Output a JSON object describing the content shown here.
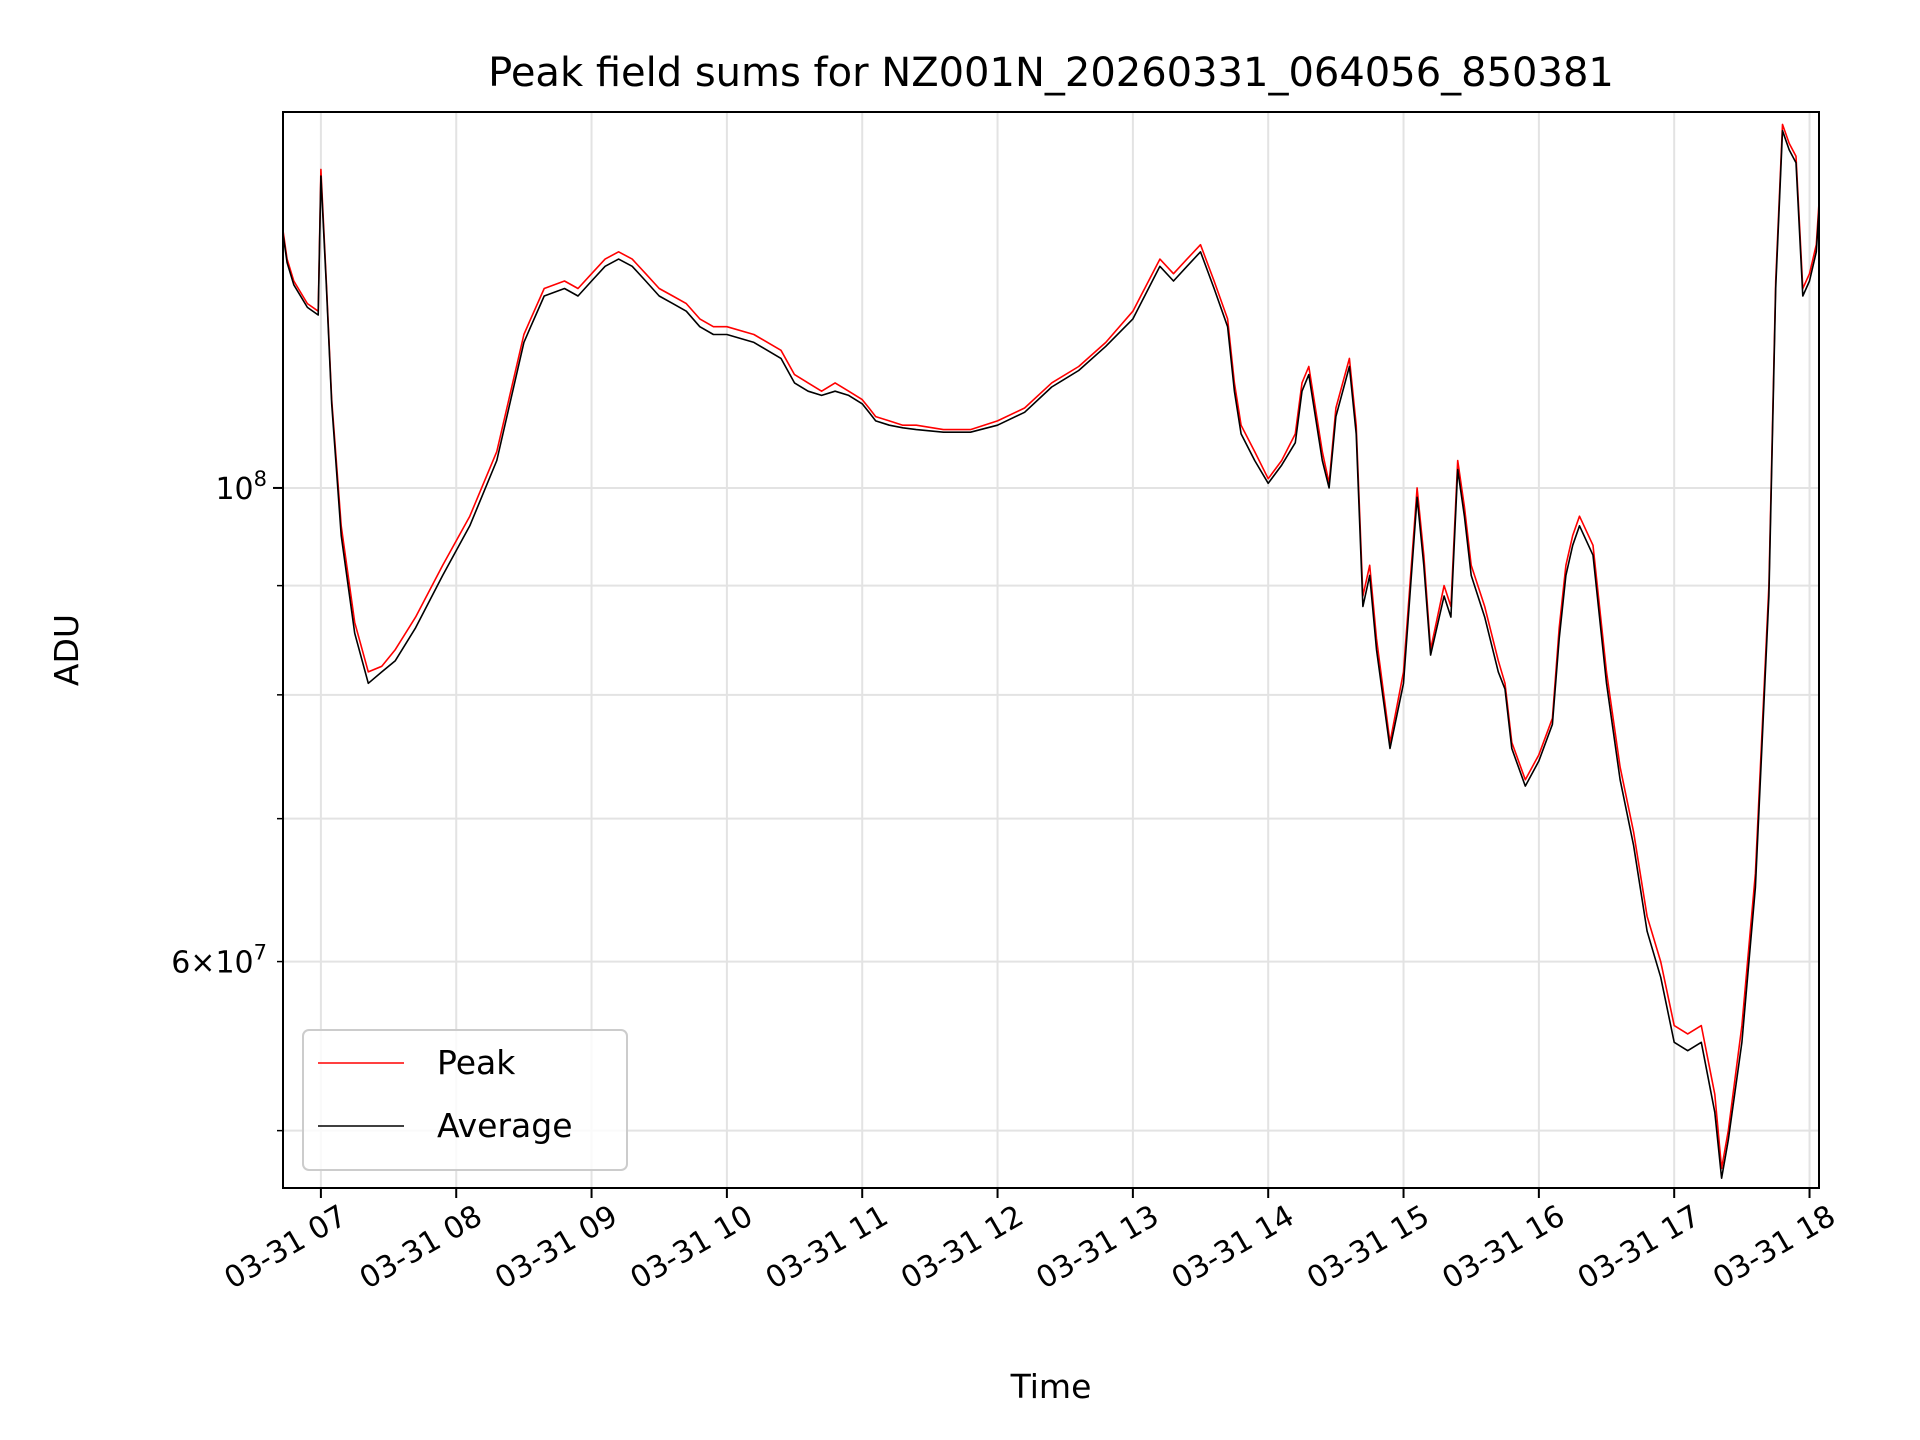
{
  "chart_data": {
    "type": "line",
    "title": "Peak field sums for NZ001N_20260331_064056_850381",
    "xlabel": "Time",
    "ylabel": "ADU",
    "yscale": "log",
    "ylim": [
      47000000,
      150000000
    ],
    "xlim": [
      6.72,
      18.07
    ],
    "grid": true,
    "x_ticks": [
      {
        "value": 7,
        "label": "03-31 07"
      },
      {
        "value": 8,
        "label": "03-31 08"
      },
      {
        "value": 9,
        "label": "03-31 09"
      },
      {
        "value": 10,
        "label": "03-31 10"
      },
      {
        "value": 11,
        "label": "03-31 11"
      },
      {
        "value": 12,
        "label": "03-31 12"
      },
      {
        "value": 13,
        "label": "03-31 13"
      },
      {
        "value": 14,
        "label": "03-31 14"
      },
      {
        "value": 15,
        "label": "03-31 15"
      },
      {
        "value": 16,
        "label": "03-31 16"
      },
      {
        "value": 17,
        "label": "03-31 17"
      },
      {
        "value": 18,
        "label": "03-31 18"
      }
    ],
    "y_ticks_major": [
      {
        "value": 100000000,
        "base": "10",
        "exp": "8"
      }
    ],
    "y_ticks_minor": [
      {
        "value": 50000000,
        "label": ""
      },
      {
        "value": 60000000,
        "mant": "6",
        "base": "10",
        "exp": "7"
      },
      {
        "value": 70000000,
        "label": ""
      },
      {
        "value": 80000000,
        "label": ""
      },
      {
        "value": 90000000,
        "label": ""
      }
    ],
    "legend": {
      "position": "lower-left"
    },
    "series": [
      {
        "name": "Peak",
        "color": "#ff0000",
        "x": [
          6.72,
          6.75,
          6.8,
          6.9,
          6.98,
          7.0,
          7.04,
          7.08,
          7.15,
          7.25,
          7.35,
          7.45,
          7.55,
          7.7,
          7.9,
          8.1,
          8.3,
          8.5,
          8.55,
          8.65,
          8.8,
          8.9,
          9.0,
          9.1,
          9.2,
          9.3,
          9.4,
          9.5,
          9.6,
          9.7,
          9.8,
          9.9,
          10.0,
          10.2,
          10.4,
          10.5,
          10.6,
          10.7,
          10.8,
          10.9,
          11.0,
          11.05,
          11.1,
          11.2,
          11.3,
          11.4,
          11.6,
          11.8,
          12.0,
          12.2,
          12.4,
          12.6,
          12.8,
          13.0,
          13.2,
          13.3,
          13.4,
          13.5,
          13.6,
          13.7,
          13.75,
          13.8,
          13.9,
          14.0,
          14.1,
          14.2,
          14.25,
          14.3,
          14.4,
          14.45,
          14.5,
          14.6,
          14.65,
          14.7,
          14.75,
          14.8,
          14.9,
          15.0,
          15.1,
          15.15,
          15.2,
          15.3,
          15.35,
          15.4,
          15.45,
          15.5,
          15.6,
          15.7,
          15.75,
          15.8,
          15.9,
          16.0,
          16.1,
          16.15,
          16.2,
          16.25,
          16.3,
          16.4,
          16.5,
          16.6,
          16.7,
          16.8,
          16.9,
          17.0,
          17.1,
          17.2,
          17.3,
          17.35,
          17.4,
          17.5,
          17.6,
          17.7,
          17.75,
          17.8,
          17.85,
          17.9,
          17.95,
          18.0,
          18.05,
          18.07
        ],
        "y": [
          132000000,
          128000000,
          125000000,
          122000000,
          121000000,
          141000000,
          125000000,
          110000000,
          96000000,
          86500000,
          82000000,
          82500000,
          84000000,
          87000000,
          92000000,
          97000000,
          104000000,
          118000000,
          120000000,
          124000000,
          125000000,
          124000000,
          126000000,
          128000000,
          129000000,
          128000000,
          126000000,
          124000000,
          123000000,
          122000000,
          120000000,
          119000000,
          119000000,
          118000000,
          116000000,
          113000000,
          112000000,
          111000000,
          112000000,
          111000000,
          110000000,
          109000000,
          108000000,
          107500000,
          107000000,
          107000000,
          106500000,
          106500000,
          107500000,
          109000000,
          112000000,
          114000000,
          117000000,
          121000000,
          128000000,
          126000000,
          128000000,
          130000000,
          125000000,
          120000000,
          112000000,
          107000000,
          104000000,
          101000000,
          103000000,
          106000000,
          112000000,
          114000000,
          104000000,
          100500000,
          109000000,
          115000000,
          107000000,
          89000000,
          92000000,
          85000000,
          76000000,
          82000000,
          100000000,
          93000000,
          84000000,
          90000000,
          88000000,
          103000000,
          98000000,
          92000000,
          88000000,
          83000000,
          81000000,
          76000000,
          73000000,
          75000000,
          78000000,
          86000000,
          92000000,
          95000000,
          97000000,
          94000000,
          82000000,
          74000000,
          69000000,
          63000000,
          60000000,
          56000000,
          55500000,
          56000000,
          52000000,
          48000000,
          50000000,
          56000000,
          66000000,
          90000000,
          125000000,
          148000000,
          145000000,
          143000000,
          124000000,
          126000000,
          130000000,
          136000000
        ]
      },
      {
        "name": "Average",
        "color": "#000000",
        "x": [
          6.72,
          6.75,
          6.8,
          6.9,
          6.98,
          7.0,
          7.04,
          7.08,
          7.15,
          7.25,
          7.35,
          7.45,
          7.55,
          7.7,
          7.9,
          8.1,
          8.3,
          8.5,
          8.55,
          8.65,
          8.8,
          8.9,
          9.0,
          9.1,
          9.2,
          9.3,
          9.4,
          9.5,
          9.6,
          9.7,
          9.8,
          9.9,
          10.0,
          10.2,
          10.4,
          10.5,
          10.6,
          10.7,
          10.8,
          10.9,
          11.0,
          11.05,
          11.1,
          11.2,
          11.3,
          11.4,
          11.6,
          11.8,
          12.0,
          12.2,
          12.4,
          12.6,
          12.8,
          13.0,
          13.2,
          13.3,
          13.4,
          13.5,
          13.6,
          13.7,
          13.75,
          13.8,
          13.9,
          14.0,
          14.1,
          14.2,
          14.25,
          14.3,
          14.4,
          14.45,
          14.5,
          14.6,
          14.65,
          14.7,
          14.75,
          14.8,
          14.9,
          15.0,
          15.1,
          15.15,
          15.2,
          15.3,
          15.35,
          15.4,
          15.45,
          15.5,
          15.6,
          15.7,
          15.75,
          15.8,
          15.9,
          16.0,
          16.1,
          16.15,
          16.2,
          16.25,
          16.3,
          16.4,
          16.5,
          16.6,
          16.7,
          16.8,
          16.9,
          17.0,
          17.1,
          17.2,
          17.3,
          17.35,
          17.4,
          17.5,
          17.6,
          17.7,
          17.75,
          17.8,
          17.85,
          17.9,
          17.95,
          18.0,
          18.05,
          18.07
        ],
        "y": [
          131500000,
          127500000,
          124500000,
          121500000,
          120500000,
          140000000,
          124500000,
          109500000,
          95000000,
          85500000,
          81000000,
          82000000,
          83000000,
          86000000,
          91000000,
          96000000,
          103000000,
          117000000,
          119000000,
          123000000,
          124000000,
          123000000,
          125000000,
          127000000,
          128000000,
          127000000,
          125000000,
          123000000,
          122000000,
          121000000,
          119000000,
          118000000,
          118000000,
          117000000,
          115000000,
          112000000,
          111000000,
          110500000,
          111000000,
          110500000,
          109500000,
          108500000,
          107500000,
          107000000,
          106700000,
          106500000,
          106200000,
          106200000,
          107000000,
          108500000,
          111500000,
          113500000,
          116500000,
          120000000,
          127000000,
          125000000,
          127000000,
          129000000,
          124000000,
          119000000,
          111000000,
          106000000,
          103000000,
          100500000,
          102500000,
          105000000,
          111000000,
          113000000,
          103000000,
          100000000,
          108000000,
          114000000,
          106000000,
          88000000,
          91000000,
          84000000,
          75500000,
          81000000,
          99000000,
          92000000,
          83500000,
          89000000,
          87000000,
          102000000,
          97000000,
          91000000,
          87000000,
          82000000,
          80500000,
          75500000,
          72500000,
          74500000,
          77500000,
          85000000,
          91000000,
          94000000,
          96000000,
          93000000,
          81000000,
          73000000,
          68000000,
          62000000,
          59000000,
          55000000,
          54500000,
          55000000,
          51000000,
          47500000,
          49500000,
          55000000,
          65000000,
          89000000,
          124000000,
          147000000,
          144000000,
          142000000,
          123000000,
          125000000,
          129000000,
          135000000
        ]
      }
    ]
  }
}
